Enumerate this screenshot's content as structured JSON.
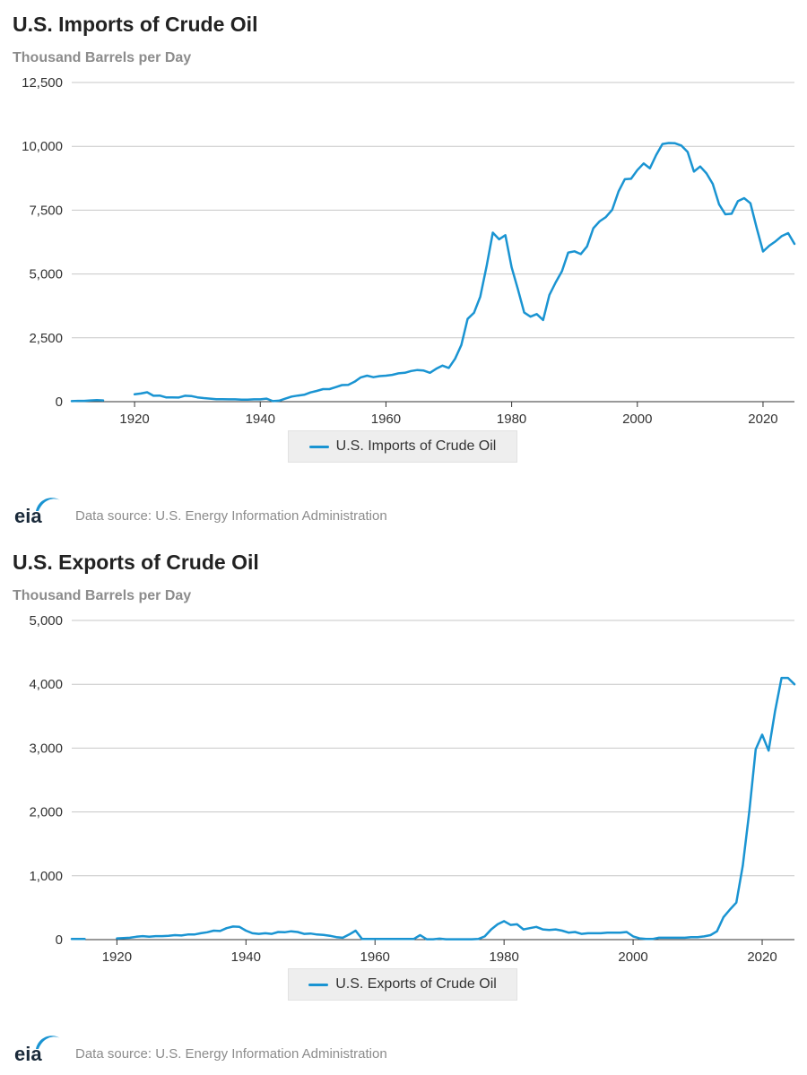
{
  "colors": {
    "line": "#1a94d2",
    "grid": "#c7c7c7",
    "axis": "#333333",
    "logo": "#1a94d2"
  },
  "source": {
    "logo_text": "eia",
    "text": "Data source: U.S. Energy Information Administration"
  },
  "chart_data": [
    {
      "type": "line",
      "title": "U.S. Imports of Crude Oil",
      "subtitle": "Thousand Barrels per Day",
      "xlabel": "",
      "ylabel": "",
      "xlim": [
        1910,
        2025
      ],
      "ylim": [
        0,
        12500
      ],
      "x_ticks": [
        1920,
        1940,
        1960,
        1980,
        2000,
        2020
      ],
      "x_tick_labels": [
        "1920",
        "1940",
        "1960",
        "1980",
        "2000",
        "2020"
      ],
      "y_ticks": [
        0,
        2500,
        5000,
        7500,
        10000,
        12500
      ],
      "y_tick_labels": [
        "0",
        "2,500",
        "5,000",
        "7,500",
        "10,000",
        "12,500"
      ],
      "grid": true,
      "legend": "bottom-center",
      "series": [
        {
          "name": "U.S. Imports of Crude Oil",
          "segments": [
            {
              "x": [
                1910,
                1911,
                1912,
                1913,
                1914,
                1915
              ],
              "y": [
                20,
                30,
                30,
                50,
                60,
                50
              ]
            },
            {
              "x": [
                1920,
                1921,
                1922,
                1923,
                1924,
                1925,
                1926,
                1927,
                1928,
                1929,
                1930,
                1931,
                1932,
                1933,
                1934,
                1935,
                1936,
                1937,
                1938,
                1939,
                1940,
                1941,
                1942,
                1943,
                1944,
                1945,
                1946,
                1947,
                1948,
                1949,
                1950,
                1951,
                1952,
                1953,
                1954,
                1955,
                1956,
                1957,
                1958,
                1959,
                1960,
                1961,
                1962,
                1963,
                1964,
                1965,
                1966,
                1967,
                1968,
                1969,
                1970,
                1971,
                1972,
                1973,
                1974,
                1975,
                1976,
                1977,
                1978,
                1979,
                1980,
                1981,
                1982,
                1983,
                1984,
                1985,
                1986,
                1987,
                1988,
                1989,
                1990,
                1991,
                1992,
                1993,
                1994,
                1995,
                1996,
                1997,
                1998,
                1999,
                2000,
                2001,
                2002,
                2003,
                2004,
                2005,
                2006,
                2007,
                2008,
                2009,
                2010,
                2011,
                2012,
                2013,
                2014,
                2015,
                2016,
                2017,
                2018,
                2019,
                2020,
                2021,
                2022,
                2023,
                2024,
                2025
              ],
              "y": [
                290,
                320,
                370,
                230,
                240,
                170,
                170,
                160,
                230,
                220,
                170,
                140,
                120,
                100,
                100,
                90,
                90,
                80,
                80,
                90,
                90,
                120,
                20,
                40,
                120,
                200,
                240,
                270,
                360,
                420,
                490,
                490,
                570,
                650,
                660,
                780,
                950,
                1020,
                960,
                1000,
                1020,
                1050,
                1110,
                1130,
                1200,
                1240,
                1220,
                1130,
                1290,
                1410,
                1320,
                1680,
                2220,
                3240,
                3480,
                4110,
                5290,
                6620,
                6360,
                6520,
                5260,
                4400,
                3490,
                3330,
                3430,
                3200,
                4180,
                4670,
                5110,
                5840,
                5890,
                5780,
                6080,
                6790,
                7060,
                7230,
                7510,
                8230,
                8710,
                8730,
                9070,
                9330,
                9140,
                9660,
                10090,
                10130,
                10120,
                10030,
                9780,
                9010,
                9210,
                8940,
                8530,
                7730,
                7340,
                7360,
                7850,
                7970,
                7770,
                6800,
                5880,
                6110,
                6280,
                6490,
                6600,
                6180
              ]
            }
          ]
        }
      ]
    },
    {
      "type": "line",
      "title": "U.S. Exports of Crude Oil",
      "subtitle": "Thousand Barrels per Day",
      "xlabel": "",
      "ylabel": "",
      "xlim": [
        1913,
        2025
      ],
      "ylim": [
        0,
        5000
      ],
      "x_ticks": [
        1920,
        1940,
        1960,
        1980,
        2000,
        2020
      ],
      "x_tick_labels": [
        "1920",
        "1940",
        "1960",
        "1980",
        "2000",
        "2020"
      ],
      "y_ticks": [
        0,
        1000,
        2000,
        3000,
        4000,
        5000
      ],
      "y_tick_labels": [
        "0",
        "1,000",
        "2,000",
        "3,000",
        "4,000",
        "5,000"
      ],
      "grid": true,
      "legend": "bottom-center",
      "series": [
        {
          "name": "U.S. Exports of Crude Oil",
          "segments": [
            {
              "x": [
                1913,
                1914,
                1915
              ],
              "y": [
                10,
                10,
                10
              ]
            },
            {
              "x": [
                1920,
                1921,
                1922,
                1923,
                1924,
                1925,
                1926,
                1927,
                1928,
                1929,
                1930,
                1931,
                1932,
                1933,
                1934,
                1935,
                1936,
                1937,
                1938,
                1939,
                1940,
                1941,
                1942,
                1943,
                1944,
                1945,
                1946,
                1947,
                1948,
                1949,
                1950,
                1951,
                1952,
                1953,
                1954,
                1955,
                1956,
                1957,
                1958,
                1959,
                1960,
                1961,
                1962,
                1963,
                1964,
                1965,
                1966,
                1967,
                1968,
                1969,
                1970,
                1971,
                1972,
                1973,
                1974,
                1975,
                1976,
                1977,
                1978,
                1979,
                1980,
                1981,
                1982,
                1983,
                1984,
                1985,
                1986,
                1987,
                1988,
                1989,
                1990,
                1991,
                1992,
                1993,
                1994,
                1995,
                1996,
                1997,
                1998,
                1999,
                2000,
                2001,
                2002,
                2003,
                2004,
                2005,
                2006,
                2007,
                2008,
                2009,
                2010,
                2011,
                2012,
                2013,
                2014,
                2015,
                2016,
                2017,
                2018,
                2019,
                2020,
                2021,
                2022,
                2023,
                2024,
                2025
              ],
              "y": [
                20,
                25,
                30,
                45,
                55,
                45,
                55,
                55,
                60,
                70,
                65,
                80,
                80,
                100,
                115,
                140,
                135,
                180,
                205,
                200,
                140,
                100,
                90,
                100,
                90,
                120,
                115,
                130,
                120,
                90,
                95,
                80,
                75,
                60,
                40,
                30,
                80,
                140,
                10,
                10,
                10,
                10,
                10,
                10,
                10,
                10,
                10,
                70,
                5,
                5,
                15,
                5,
                5,
                5,
                5,
                5,
                10,
                50,
                160,
                240,
                290,
                230,
                240,
                160,
                180,
                200,
                160,
                150,
                160,
                140,
                110,
                120,
                90,
                100,
                100,
                100,
                110,
                110,
                110,
                120,
                50,
                20,
                10,
                10,
                30,
                30,
                30,
                30,
                30,
                40,
                40,
                50,
                70,
                130,
                350,
                470,
                580,
                1160,
                2000,
                2980,
                3210,
                2960,
                3580,
                4100,
                4100,
                4000
              ]
            }
          ]
        }
      ]
    }
  ]
}
